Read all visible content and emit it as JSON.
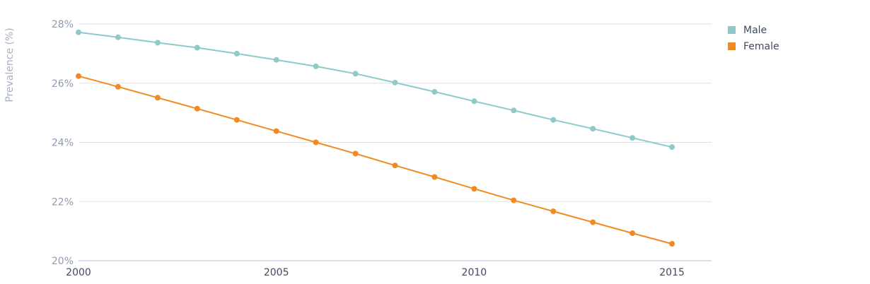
{
  "chart_data": {
    "type": "line",
    "title": "",
    "xlabel": "",
    "ylabel": "Prevalence (%)",
    "x": [
      2000,
      2001,
      2002,
      2003,
      2004,
      2005,
      2006,
      2007,
      2008,
      2009,
      2010,
      2011,
      2012,
      2013,
      2014,
      2015
    ],
    "xlim": [
      2000,
      2016
    ],
    "ylim": [
      20,
      28
    ],
    "x_ticks": [
      "2000",
      "2005",
      "2010",
      "2015"
    ],
    "y_ticks": [
      "20%",
      "22%",
      "24%",
      "26%",
      "28%"
    ],
    "grid": true,
    "legend_position": "top-right",
    "series": [
      {
        "name": "Male",
        "color": "#8ccbc9",
        "values": [
          27.72,
          27.55,
          27.37,
          27.2,
          27.0,
          26.79,
          26.57,
          26.32,
          26.02,
          25.71,
          25.39,
          25.08,
          24.76,
          24.46,
          24.15,
          23.84
        ]
      },
      {
        "name": "Female",
        "color": "#f28a22",
        "values": [
          26.24,
          25.88,
          25.51,
          25.14,
          24.76,
          24.38,
          24.0,
          23.62,
          23.22,
          22.83,
          22.43,
          22.04,
          21.67,
          21.3,
          20.93,
          20.57
        ]
      }
    ]
  }
}
